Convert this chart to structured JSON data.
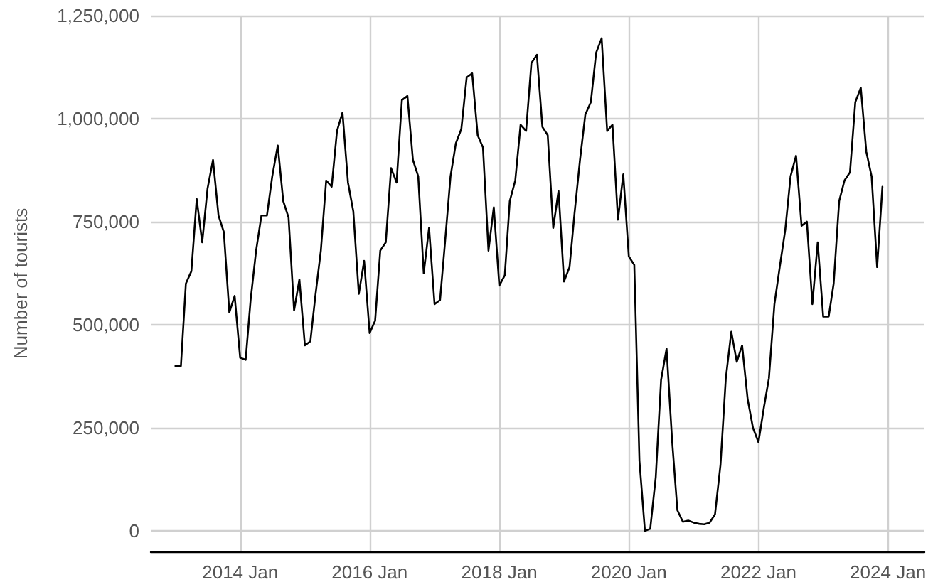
{
  "chart_data": {
    "type": "line",
    "ylabel": "Number of tourists",
    "x": [
      "2013-01",
      "2013-02",
      "2013-03",
      "2013-04",
      "2013-05",
      "2013-06",
      "2013-07",
      "2013-08",
      "2013-09",
      "2013-10",
      "2013-11",
      "2013-12",
      "2014-01",
      "2014-02",
      "2014-03",
      "2014-04",
      "2014-05",
      "2014-06",
      "2014-07",
      "2014-08",
      "2014-09",
      "2014-10",
      "2014-11",
      "2014-12",
      "2015-01",
      "2015-02",
      "2015-03",
      "2015-04",
      "2015-05",
      "2015-06",
      "2015-07",
      "2015-08",
      "2015-09",
      "2015-10",
      "2015-11",
      "2015-12",
      "2016-01",
      "2016-02",
      "2016-03",
      "2016-04",
      "2016-05",
      "2016-06",
      "2016-07",
      "2016-08",
      "2016-09",
      "2016-10",
      "2016-11",
      "2016-12",
      "2017-01",
      "2017-02",
      "2017-03",
      "2017-04",
      "2017-05",
      "2017-06",
      "2017-07",
      "2017-08",
      "2017-09",
      "2017-10",
      "2017-11",
      "2017-12",
      "2018-01",
      "2018-02",
      "2018-03",
      "2018-04",
      "2018-05",
      "2018-06",
      "2018-07",
      "2018-08",
      "2018-09",
      "2018-10",
      "2018-11",
      "2018-12",
      "2019-01",
      "2019-02",
      "2019-03",
      "2019-04",
      "2019-05",
      "2019-06",
      "2019-07",
      "2019-08",
      "2019-09",
      "2019-10",
      "2019-11",
      "2019-12",
      "2020-01",
      "2020-02",
      "2020-03",
      "2020-04",
      "2020-05",
      "2020-06",
      "2020-07",
      "2020-08",
      "2020-09",
      "2020-10",
      "2020-11",
      "2020-12",
      "2021-01",
      "2021-02",
      "2021-03",
      "2021-04",
      "2021-05",
      "2021-06",
      "2021-07",
      "2021-08",
      "2021-09",
      "2021-10",
      "2021-11",
      "2021-12",
      "2022-01",
      "2022-02",
      "2022-03",
      "2022-04",
      "2022-05",
      "2022-06",
      "2022-07",
      "2022-08",
      "2022-09",
      "2022-10",
      "2022-11",
      "2022-12",
      "2023-01",
      "2023-02",
      "2023-03",
      "2023-04",
      "2023-05",
      "2023-06",
      "2023-07",
      "2023-08",
      "2023-09",
      "2023-10",
      "2023-11",
      "2023-12"
    ],
    "series": [
      {
        "color": "#000000",
        "values": [
          400000,
          400000,
          600000,
          630000,
          805000,
          700000,
          830000,
          900000,
          765000,
          725000,
          530000,
          570000,
          420000,
          415000,
          560000,
          680000,
          765000,
          765000,
          860000,
          935000,
          800000,
          760000,
          535000,
          610000,
          450000,
          460000,
          570000,
          680000,
          850000,
          835000,
          970000,
          1015000,
          845000,
          775000,
          575000,
          655000,
          480000,
          510000,
          680000,
          700000,
          880000,
          845000,
          1045000,
          1055000,
          900000,
          860000,
          625000,
          735000,
          550000,
          560000,
          700000,
          860000,
          940000,
          975000,
          1100000,
          1110000,
          960000,
          930000,
          680000,
          785000,
          595000,
          620000,
          800000,
          850000,
          985000,
          970000,
          1135000,
          1155000,
          980000,
          960000,
          735000,
          825000,
          605000,
          640000,
          770000,
          900000,
          1010000,
          1040000,
          1160000,
          1195000,
          970000,
          985000,
          755000,
          865000,
          666000,
          645000,
          170000,
          0,
          5000,
          130000,
          366000,
          442000,
          220000,
          50000,
          22000,
          25000,
          20000,
          17000,
          16000,
          20000,
          40000,
          160000,
          370000,
          483000,
          410000,
          450000,
          320000,
          250000,
          215000,
          300000,
          370000,
          550000,
          640000,
          730000,
          860000,
          910000,
          740000,
          750000,
          550000,
          700000,
          520000,
          520000,
          600000,
          800000,
          850000,
          870000,
          1040000,
          1075000,
          920000,
          860000,
          640000,
          835000
        ]
      }
    ],
    "xlim": [
      "2012-08-15",
      "2024-07-25"
    ],
    "xticks": [
      {
        "value": "2014-01",
        "label": "2014 Jan"
      },
      {
        "value": "2016-01",
        "label": "2016 Jan"
      },
      {
        "value": "2018-01",
        "label": "2018 Jan"
      },
      {
        "value": "2020-01",
        "label": "2020 Jan"
      },
      {
        "value": "2022-01",
        "label": "2022 Jan"
      },
      {
        "value": "2024-01",
        "label": "2024 Jan"
      }
    ],
    "ylim": [
      -50000,
      1250000
    ],
    "yticks": [
      {
        "value": 0,
        "label": "0"
      },
      {
        "value": 250000,
        "label": "250,000"
      },
      {
        "value": 500000,
        "label": "500,000"
      },
      {
        "value": 750000,
        "label": "750,000"
      },
      {
        "value": 1000000,
        "label": "1,000,000"
      },
      {
        "value": 1250000,
        "label": "1,250,000"
      }
    ],
    "grid": true,
    "marker": "none",
    "line_style": "solid"
  }
}
